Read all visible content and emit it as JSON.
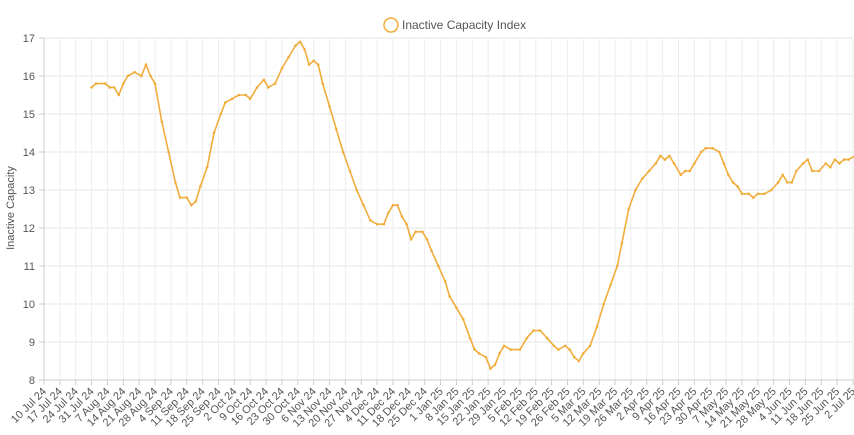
{
  "chart_data": {
    "type": "line",
    "title": "",
    "xlabel": "",
    "ylabel": "Inactive Capacity",
    "ylim": [
      8,
      17
    ],
    "yticks": [
      8,
      9,
      10,
      11,
      12,
      13,
      14,
      15,
      16,
      17
    ],
    "grid": true,
    "legend_position": "top-center",
    "x_tick_labels": [
      "10 Jul 24",
      "17 Jul 24",
      "24 Jul 24",
      "31 Jul 24",
      "7 Aug 24",
      "14 Aug 24",
      "21 Aug 24",
      "28 Aug 24",
      "4 Sep 24",
      "11 Sep 24",
      "18 Sep 24",
      "25 Sep 24",
      "2 Oct 24",
      "9 Oct 24",
      "16 Oct 24",
      "23 Oct 24",
      "30 Oct 24",
      "6 Nov 24",
      "13 Nov 24",
      "20 Nov 24",
      "27 Nov 24",
      "4 Dec 24",
      "11 Dec 24",
      "18 Dec 24",
      "25 Dec 24",
      "1 Jan 25",
      "8 Jan 25",
      "15 Jan 25",
      "22 Jan 25",
      "29 Jan 25",
      "5 Feb 25",
      "12 Feb 25",
      "19 Feb 25",
      "26 Feb 25",
      "5 Mar 25",
      "12 Mar 25",
      "19 Mar 25",
      "26 Mar 25",
      "2 Apr 25",
      "9 Apr 25",
      "16 Apr 25",
      "23 Apr 25",
      "30 Apr 25",
      "7 May 25",
      "14 May 25",
      "21 May 25",
      "28 May 25",
      "4 Jun 25",
      "11 Jun 25",
      "18 Jun 25",
      "25 Jun 25",
      "2 Jul 25"
    ],
    "series": [
      {
        "name": "Inactive Capacity Index",
        "color": "#f0ad3c",
        "points": [
          [
            "31 Jul 24",
            15.7
          ],
          [
            "2 Aug 24",
            15.8
          ],
          [
            "6 Aug 24",
            15.8
          ],
          [
            "8 Aug 24",
            15.7
          ],
          [
            "10 Aug 24",
            15.7
          ],
          [
            "12 Aug 24",
            15.5
          ],
          [
            "14 Aug 24",
            15.8
          ],
          [
            "16 Aug 24",
            16.0
          ],
          [
            "19 Aug 24",
            16.1
          ],
          [
            "22 Aug 24",
            16.0
          ],
          [
            "24 Aug 24",
            16.3
          ],
          [
            "26 Aug 24",
            16.0
          ],
          [
            "28 Aug 24",
            15.8
          ],
          [
            "31 Aug 24",
            14.8
          ],
          [
            "3 Sep 24",
            14.0
          ],
          [
            "6 Sep 24",
            13.2
          ],
          [
            "8 Sep 24",
            12.8
          ],
          [
            "11 Sep 24",
            12.8
          ],
          [
            "13 Sep 24",
            12.6
          ],
          [
            "15 Sep 24",
            12.7
          ],
          [
            "17 Sep 24",
            13.1
          ],
          [
            "20 Sep 24",
            13.6
          ],
          [
            "23 Sep 24",
            14.5
          ],
          [
            "26 Sep 24",
            15.0
          ],
          [
            "28 Sep 24",
            15.3
          ],
          [
            "1 Oct 24",
            15.4
          ],
          [
            "4 Oct 24",
            15.5
          ],
          [
            "7 Oct 24",
            15.5
          ],
          [
            "9 Oct 24",
            15.4
          ],
          [
            "12 Oct 24",
            15.7
          ],
          [
            "15 Oct 24",
            15.9
          ],
          [
            "17 Oct 24",
            15.7
          ],
          [
            "20 Oct 24",
            15.8
          ],
          [
            "23 Oct 24",
            16.2
          ],
          [
            "26 Oct 24",
            16.5
          ],
          [
            "29 Oct 24",
            16.8
          ],
          [
            "31 Oct 24",
            16.9
          ],
          [
            "2 Nov 24",
            16.7
          ],
          [
            "4 Nov 24",
            16.3
          ],
          [
            "6 Nov 24",
            16.4
          ],
          [
            "8 Nov 24",
            16.3
          ],
          [
            "10 Nov 24",
            15.8
          ],
          [
            "13 Nov 24",
            15.2
          ],
          [
            "16 Nov 24",
            14.6
          ],
          [
            "19 Nov 24",
            14.0
          ],
          [
            "22 Nov 24",
            13.5
          ],
          [
            "25 Nov 24",
            13.0
          ],
          [
            "28 Nov 24",
            12.6
          ],
          [
            "1 Dec 24",
            12.2
          ],
          [
            "4 Dec 24",
            12.1
          ],
          [
            "7 Dec 24",
            12.1
          ],
          [
            "9 Dec 24",
            12.4
          ],
          [
            "11 Dec 24",
            12.6
          ],
          [
            "13 Dec 24",
            12.6
          ],
          [
            "15 Dec 24",
            12.3
          ],
          [
            "17 Dec 24",
            12.1
          ],
          [
            "19 Dec 24",
            11.7
          ],
          [
            "21 Dec 24",
            11.9
          ],
          [
            "24 Dec 24",
            11.9
          ],
          [
            "26 Dec 24",
            11.7
          ],
          [
            "28 Dec 24",
            11.4
          ],
          [
            "31 Dec 24",
            11.0
          ],
          [
            "3 Jan 25",
            10.6
          ],
          [
            "5 Jan 25",
            10.2
          ],
          [
            "8 Jan 25",
            9.9
          ],
          [
            "11 Jan 25",
            9.6
          ],
          [
            "14 Jan 25",
            9.1
          ],
          [
            "16 Jan 25",
            8.8
          ],
          [
            "18 Jan 25",
            8.7
          ],
          [
            "21 Jan 25",
            8.6
          ],
          [
            "23 Jan 25",
            8.3
          ],
          [
            "25 Jan 25",
            8.4
          ],
          [
            "27 Jan 25",
            8.7
          ],
          [
            "29 Jan 25",
            8.9
          ],
          [
            "1 Feb 25",
            8.8
          ],
          [
            "5 Feb 25",
            8.8
          ],
          [
            "8 Feb 25",
            9.1
          ],
          [
            "11 Feb 25",
            9.3
          ],
          [
            "14 Feb 25",
            9.3
          ],
          [
            "17 Feb 25",
            9.1
          ],
          [
            "20 Feb 25",
            8.9
          ],
          [
            "22 Feb 25",
            8.8
          ],
          [
            "25 Feb 25",
            8.9
          ],
          [
            "27 Feb 25",
            8.8
          ],
          [
            "1 Mar 25",
            8.6
          ],
          [
            "3 Mar 25",
            8.5
          ],
          [
            "5 Mar 25",
            8.7
          ],
          [
            "8 Mar 25",
            8.9
          ],
          [
            "11 Mar 25",
            9.4
          ],
          [
            "14 Mar 25",
            10.0
          ],
          [
            "17 Mar 25",
            10.5
          ],
          [
            "20 Mar 25",
            11.0
          ],
          [
            "22 Mar 25",
            11.6
          ],
          [
            "25 Mar 25",
            12.5
          ],
          [
            "28 Mar 25",
            13.0
          ],
          [
            "31 Mar 25",
            13.3
          ],
          [
            "3 Apr 25",
            13.5
          ],
          [
            "6 Apr 25",
            13.7
          ],
          [
            "8 Apr 25",
            13.9
          ],
          [
            "10 Apr 25",
            13.8
          ],
          [
            "12 Apr 25",
            13.9
          ],
          [
            "14 Apr 25",
            13.7
          ],
          [
            "17 Apr 25",
            13.4
          ],
          [
            "19 Apr 25",
            13.5
          ],
          [
            "21 Apr 25",
            13.5
          ],
          [
            "23 Apr 25",
            13.7
          ],
          [
            "26 Apr 25",
            14.0
          ],
          [
            "28 Apr 25",
            14.1
          ],
          [
            "1 May 25",
            14.1
          ],
          [
            "4 May 25",
            14.0
          ],
          [
            "6 May 25",
            13.7
          ],
          [
            "8 May 25",
            13.4
          ],
          [
            "10 May 25",
            13.2
          ],
          [
            "12 May 25",
            13.1
          ],
          [
            "14 May 25",
            12.9
          ],
          [
            "17 May 25",
            12.9
          ],
          [
            "19 May 25",
            12.8
          ],
          [
            "21 May 25",
            12.9
          ],
          [
            "24 May 25",
            12.9
          ],
          [
            "27 May 25",
            13.0
          ],
          [
            "30 May 25",
            13.2
          ],
          [
            "1 Jun 25",
            13.4
          ],
          [
            "3 Jun 25",
            13.2
          ],
          [
            "5 Jun 25",
            13.2
          ],
          [
            "7 Jun 25",
            13.5
          ],
          [
            "10 Jun 25",
            13.7
          ],
          [
            "12 Jun 25",
            13.8
          ],
          [
            "14 Jun 25",
            13.5
          ],
          [
            "17 Jun 25",
            13.5
          ],
          [
            "20 Jun 25",
            13.7
          ],
          [
            "22 Jun 25",
            13.6
          ],
          [
            "24 Jun 25",
            13.8
          ],
          [
            "26 Jun 25",
            13.7
          ],
          [
            "28 Jun 25",
            13.8
          ],
          [
            "30 Jun 25",
            13.8
          ],
          [
            "3 Jul 25",
            13.9
          ]
        ]
      }
    ]
  }
}
